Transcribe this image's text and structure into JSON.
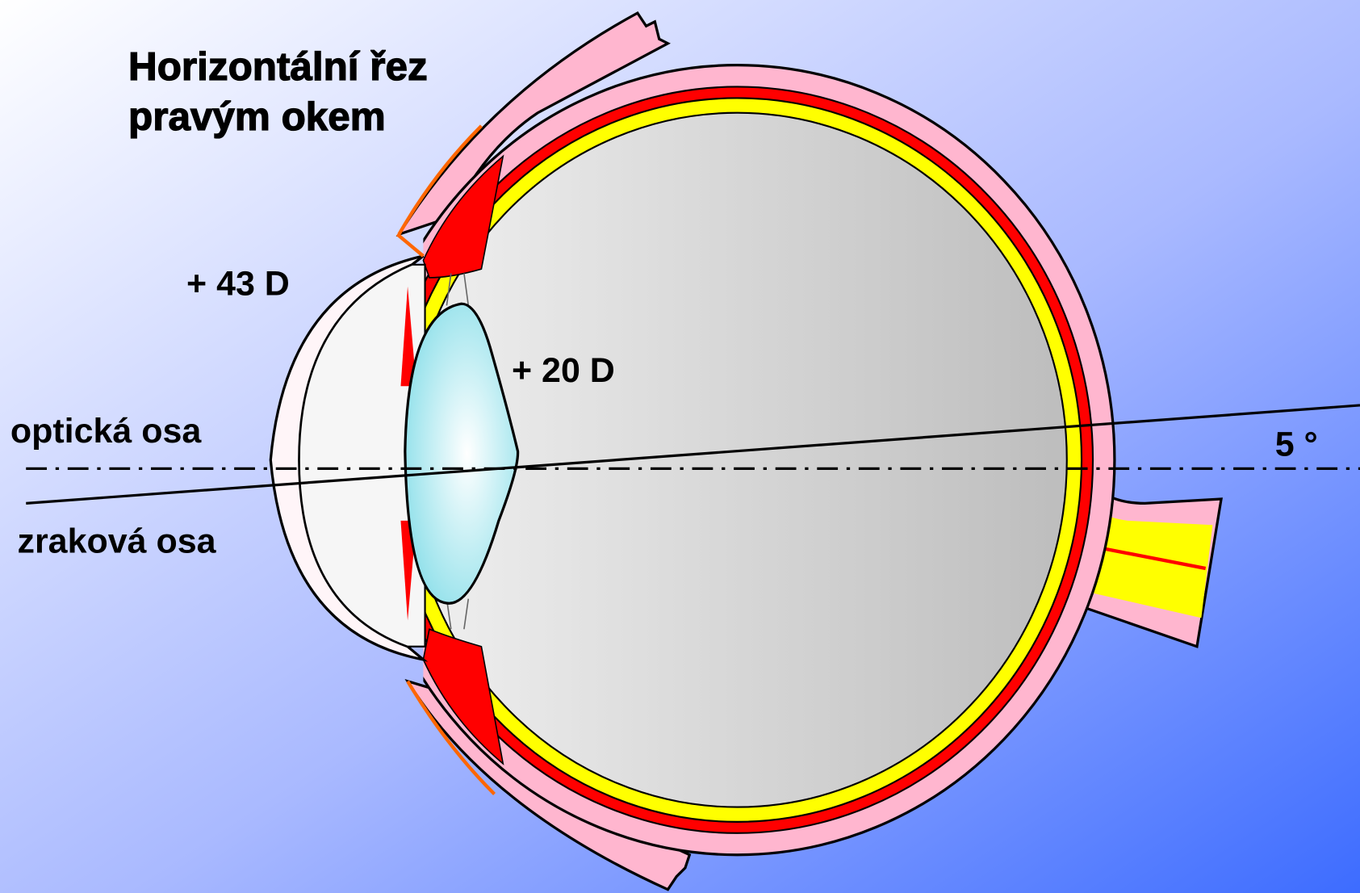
{
  "title": [
    "Horizontální řez",
    "pravým okem"
  ],
  "labels": {
    "cornea_power": "+ 43 D",
    "lens_power": "+ 20 D",
    "optical_axis": "optická osa",
    "visual_axis": "zraková osa",
    "angle": "5 °"
  }
}
